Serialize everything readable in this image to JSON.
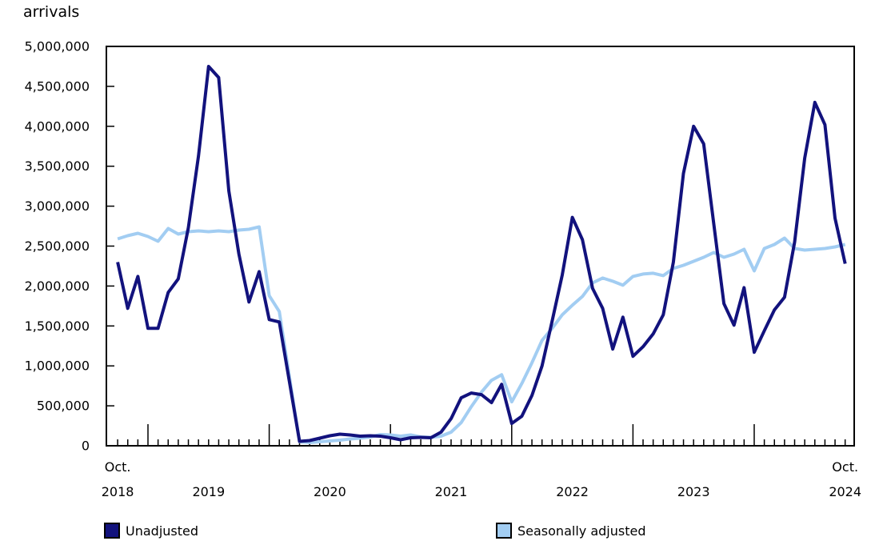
{
  "title": "arrivals",
  "legend": {
    "items": [
      {
        "label": "Unadjusted",
        "color": "#12127d"
      },
      {
        "label": "Seasonally adjusted",
        "color": "#a2cdf2"
      }
    ]
  },
  "chart_data": {
    "type": "line",
    "unit_label": "arrivals",
    "x_range_description": "Monthly data from October 2018 to October 2024",
    "axis_color": "#000000",
    "grid": false,
    "legend_position": "bottom",
    "y_axis": {
      "min": 0,
      "max": 5000000,
      "tick_step": 500000,
      "tick_labels": [
        "0",
        "500,000",
        "1,000,000",
        "1,500,000",
        "2,000,000",
        "2,500,000",
        "3,000,000",
        "3,500,000",
        "4,000,000",
        "4,500,000",
        "5,000,000"
      ]
    },
    "x_axis": {
      "months_count": 73,
      "minor_tick_every_month": true,
      "major_tick_month_indices": [
        3,
        15,
        27,
        39,
        51,
        63
      ],
      "labels": [
        {
          "index": 0,
          "line1": "Oct.",
          "line2": "2018"
        },
        {
          "index": 9,
          "line1": "",
          "line2": "2019"
        },
        {
          "index": 21,
          "line1": "",
          "line2": "2020"
        },
        {
          "index": 33,
          "line1": "",
          "line2": "2021"
        },
        {
          "index": 45,
          "line1": "",
          "line2": "2022"
        },
        {
          "index": 57,
          "line1": "",
          "line2": "2023"
        },
        {
          "index": 72,
          "line1": "Oct.",
          "line2": "2024"
        }
      ]
    },
    "series": [
      {
        "name": "Seasonally adjusted",
        "color": "#a2cdf2",
        "values": [
          2590000,
          2630000,
          2660000,
          2620000,
          2560000,
          2720000,
          2650000,
          2680000,
          2690000,
          2680000,
          2690000,
          2680000,
          2700000,
          2710000,
          2740000,
          1880000,
          1680000,
          860000,
          50000,
          40000,
          50000,
          60000,
          70000,
          85000,
          95000,
          110000,
          140000,
          135000,
          120000,
          135000,
          110000,
          105000,
          120000,
          170000,
          290000,
          490000,
          670000,
          820000,
          890000,
          550000,
          780000,
          1040000,
          1320000,
          1470000,
          1640000,
          1760000,
          1870000,
          2040000,
          2100000,
          2060000,
          2010000,
          2120000,
          2150000,
          2160000,
          2130000,
          2220000,
          2260000,
          2310000,
          2360000,
          2420000,
          2360000,
          2400000,
          2460000,
          2190000,
          2470000,
          2520000,
          2600000,
          2470000,
          2450000,
          2460000,
          2470000,
          2490000,
          2520000
        ]
      },
      {
        "name": "Unadjusted",
        "color": "#12127d",
        "values": [
          2300000,
          1720000,
          2120000,
          1470000,
          1470000,
          1920000,
          2090000,
          2730000,
          3630000,
          4750000,
          4610000,
          3190000,
          2400000,
          1800000,
          2180000,
          1580000,
          1550000,
          800000,
          55000,
          65000,
          95000,
          125000,
          145000,
          135000,
          120000,
          125000,
          120000,
          100000,
          75000,
          100000,
          105000,
          100000,
          170000,
          340000,
          600000,
          660000,
          640000,
          540000,
          770000,
          280000,
          370000,
          630000,
          1000000,
          1560000,
          2140000,
          2860000,
          2580000,
          1970000,
          1720000,
          1210000,
          1610000,
          1120000,
          1240000,
          1400000,
          1640000,
          2300000,
          3410000,
          4000000,
          3780000,
          2780000,
          1780000,
          1510000,
          1980000,
          1170000,
          1440000,
          1700000,
          1860000,
          2550000,
          3600000,
          4300000,
          4020000,
          2850000,
          2280000
        ]
      }
    ]
  }
}
